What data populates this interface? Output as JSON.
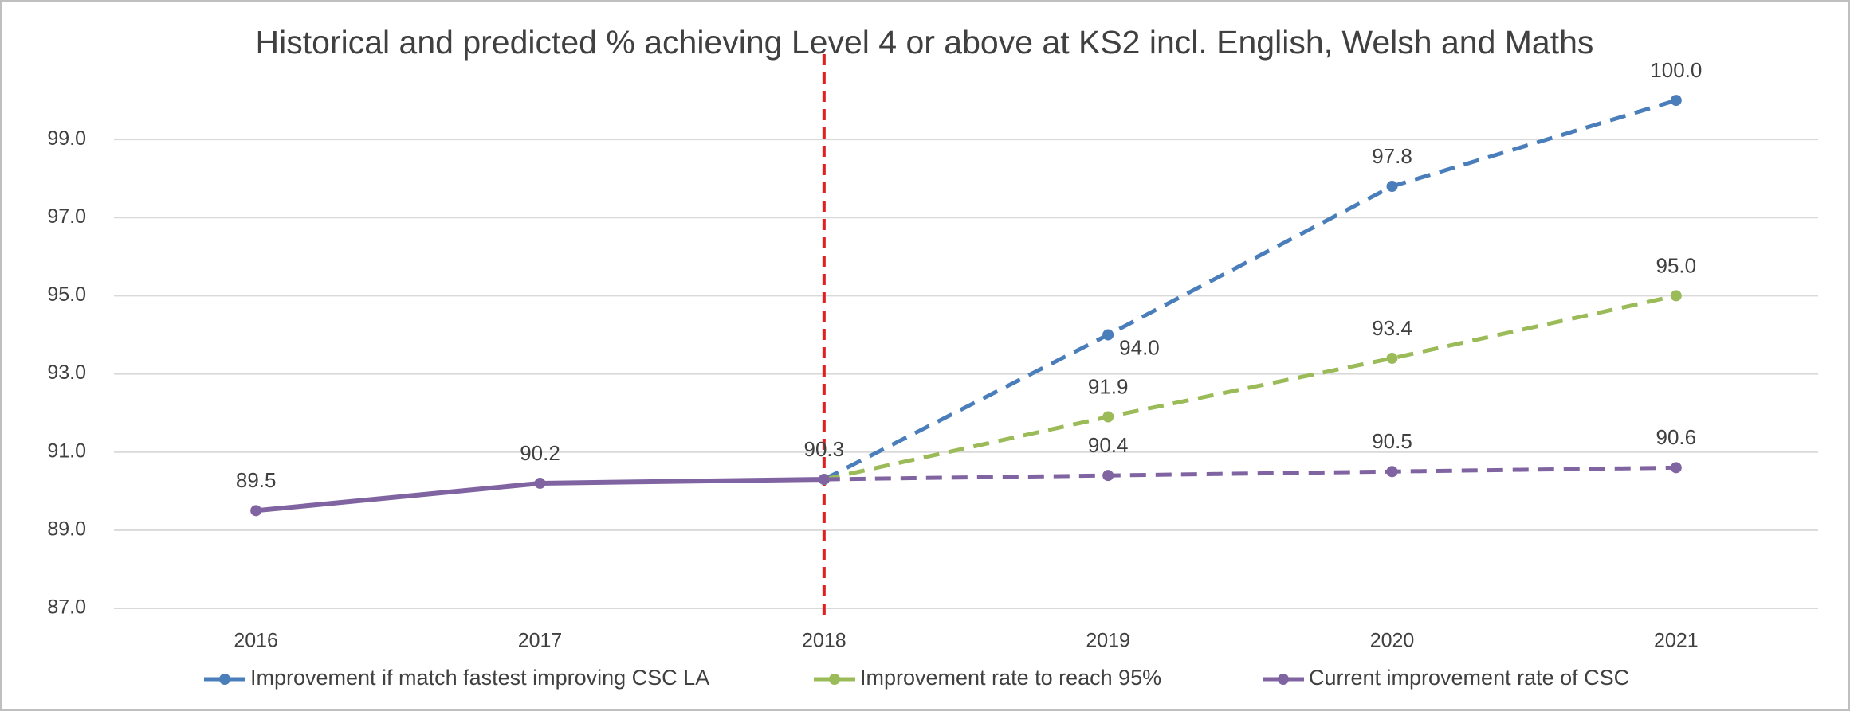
{
  "chart_data": {
    "type": "line",
    "title": "Historical and predicted % achieving Level 4 or above at KS2 incl. English, Welsh and Maths",
    "categories": [
      "2016",
      "2017",
      "2018",
      "2019",
      "2020",
      "2021"
    ],
    "series": [
      {
        "name": "Improvement if match fastest improving CSC LA",
        "color": "#4a7ebb",
        "values": [
          null,
          null,
          90.3,
          94.0,
          97.8,
          100.0
        ],
        "value_labels": [
          null,
          null,
          null,
          "94.0",
          "97.8",
          "100.0"
        ]
      },
      {
        "name": "Improvement rate to reach 95%",
        "color": "#9bbb59",
        "values": [
          null,
          null,
          90.3,
          91.9,
          93.4,
          95.0
        ],
        "value_labels": [
          null,
          null,
          null,
          "91.9",
          "93.4",
          "95.0"
        ]
      },
      {
        "name": "Current improvement rate of CSC",
        "color": "#8064a2",
        "values": [
          89.5,
          90.2,
          90.3,
          90.4,
          90.5,
          90.6
        ],
        "value_labels": [
          "89.5",
          "90.2",
          "90.3",
          "90.4",
          "90.5",
          "90.6"
        ]
      }
    ],
    "ylim": [
      87,
      101
    ],
    "yticks": [
      {
        "value": 87,
        "label": "87.0"
      },
      {
        "value": 89,
        "label": "89.0"
      },
      {
        "value": 91,
        "label": "91.0"
      },
      {
        "value": 93,
        "label": "93.0"
      },
      {
        "value": 95,
        "label": "95.0"
      },
      {
        "value": 97,
        "label": "97.0"
      },
      {
        "value": 99,
        "label": "99.0"
      }
    ],
    "grid": true,
    "forecast_from": "2018",
    "legend": "bottom"
  }
}
